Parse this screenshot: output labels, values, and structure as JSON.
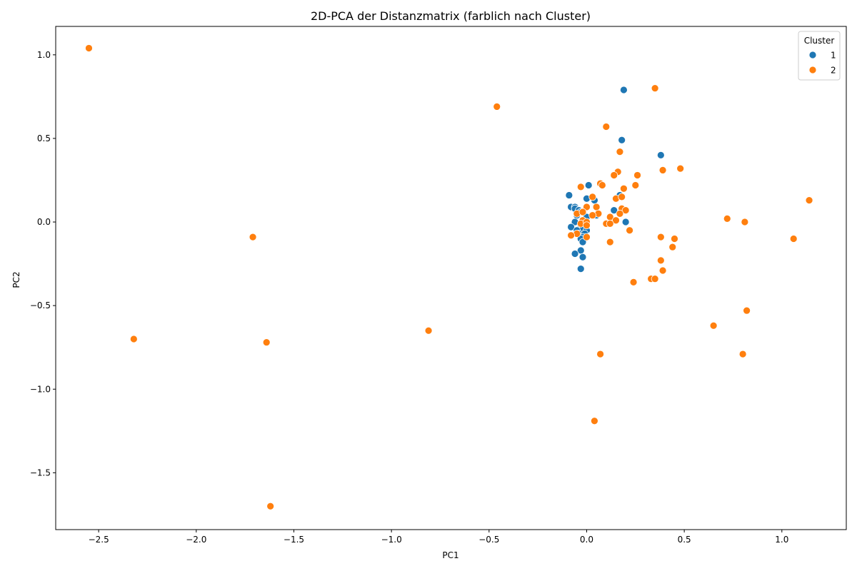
{
  "chart_data": {
    "type": "scatter",
    "title": "2D-PCA der Distanzmatrix (farblich nach Cluster)",
    "xlabel": "PC1",
    "ylabel": "PC2",
    "xlim": [
      -2.72,
      1.33
    ],
    "ylim": [
      -1.84,
      1.17
    ],
    "x_ticks": [
      -2.5,
      -2.0,
      -1.5,
      -1.0,
      -0.5,
      0.0,
      0.5,
      1.0
    ],
    "x_tick_labels": [
      "−2.5",
      "−2.0",
      "−1.5",
      "−1.0",
      "−0.5",
      "0.0",
      "0.5",
      "1.0"
    ],
    "y_ticks": [
      1.0,
      0.5,
      0.0,
      -0.5,
      -1.0,
      -1.5
    ],
    "y_tick_labels": [
      "1.0",
      "0.5",
      "0.0",
      "−0.5",
      "−1.0",
      "−1.5"
    ],
    "grid": false,
    "legend": {
      "title": "Cluster",
      "position": "top-right"
    },
    "series": [
      {
        "name": "1",
        "color": "#1f77b4",
        "points": [
          [
            0.19,
            0.79
          ],
          [
            0.18,
            0.49
          ],
          [
            0.38,
            0.4
          ],
          [
            0.01,
            0.22
          ],
          [
            -0.09,
            0.16
          ],
          [
            0.0,
            0.14
          ],
          [
            0.04,
            0.13
          ],
          [
            0.17,
            0.16
          ],
          [
            0.18,
            0.15
          ],
          [
            -0.08,
            0.09
          ],
          [
            -0.06,
            0.09
          ],
          [
            -0.06,
            0.08
          ],
          [
            -0.04,
            0.07
          ],
          [
            0.14,
            0.07
          ],
          [
            -0.03,
            0.06
          ],
          [
            -0.05,
            0.04
          ],
          [
            0.0,
            0.03
          ],
          [
            0.05,
            0.04
          ],
          [
            -0.06,
            0.0
          ],
          [
            -0.03,
            -0.02
          ],
          [
            -0.08,
            -0.03
          ],
          [
            -0.02,
            -0.04
          ],
          [
            -0.05,
            -0.05
          ],
          [
            0.0,
            -0.05
          ],
          [
            -0.04,
            -0.07
          ],
          [
            -0.01,
            -0.07
          ],
          [
            -0.02,
            -0.09
          ],
          [
            -0.03,
            -0.1
          ],
          [
            -0.02,
            -0.12
          ],
          [
            0.2,
            0.0
          ],
          [
            -0.03,
            -0.17
          ],
          [
            -0.06,
            -0.19
          ],
          [
            -0.02,
            -0.21
          ],
          [
            -0.03,
            -0.28
          ]
        ]
      },
      {
        "name": "2",
        "color": "#ff7f0e",
        "points": [
          [
            -2.55,
            1.04
          ],
          [
            0.35,
            0.8
          ],
          [
            -0.46,
            0.69
          ],
          [
            0.1,
            0.57
          ],
          [
            0.17,
            0.42
          ],
          [
            0.48,
            0.32
          ],
          [
            0.39,
            0.31
          ],
          [
            0.16,
            0.3
          ],
          [
            0.14,
            0.28
          ],
          [
            0.26,
            0.28
          ],
          [
            0.07,
            0.23
          ],
          [
            0.08,
            0.22
          ],
          [
            -0.03,
            0.21
          ],
          [
            0.25,
            0.22
          ],
          [
            0.19,
            0.2
          ],
          [
            0.03,
            0.15
          ],
          [
            0.15,
            0.14
          ],
          [
            0.18,
            0.15
          ],
          [
            0.05,
            0.09
          ],
          [
            0.0,
            0.09
          ],
          [
            0.18,
            0.08
          ],
          [
            0.2,
            0.07
          ],
          [
            0.06,
            0.05
          ],
          [
            0.17,
            0.05
          ],
          [
            -0.05,
            0.05
          ],
          [
            -0.02,
            0.06
          ],
          [
            0.03,
            0.04
          ],
          [
            0.12,
            0.03
          ],
          [
            0.15,
            0.01
          ],
          [
            -0.02,
            0.01
          ],
          [
            0.1,
            -0.01
          ],
          [
            0.12,
            -0.01
          ],
          [
            -0.03,
            -0.01
          ],
          [
            0.0,
            0.0
          ],
          [
            0.0,
            -0.02
          ],
          [
            0.22,
            -0.05
          ],
          [
            -0.05,
            -0.07
          ],
          [
            -0.08,
            -0.08
          ],
          [
            0.0,
            -0.09
          ],
          [
            0.38,
            -0.09
          ],
          [
            0.45,
            -0.1
          ],
          [
            0.12,
            -0.12
          ],
          [
            0.44,
            -0.15
          ],
          [
            -1.71,
            -0.09
          ],
          [
            0.38,
            -0.23
          ],
          [
            0.39,
            -0.29
          ],
          [
            0.33,
            -0.34
          ],
          [
            0.35,
            -0.34
          ],
          [
            0.24,
            -0.36
          ],
          [
            0.72,
            0.02
          ],
          [
            0.81,
            0.0
          ],
          [
            1.14,
            0.13
          ],
          [
            1.06,
            -0.1
          ],
          [
            0.82,
            -0.53
          ],
          [
            0.65,
            -0.62
          ],
          [
            0.8,
            -0.79
          ],
          [
            0.07,
            -0.79
          ],
          [
            -0.81,
            -0.65
          ],
          [
            -2.32,
            -0.7
          ],
          [
            -1.64,
            -0.72
          ],
          [
            0.04,
            -1.19
          ],
          [
            -1.62,
            -1.7
          ]
        ]
      }
    ]
  }
}
